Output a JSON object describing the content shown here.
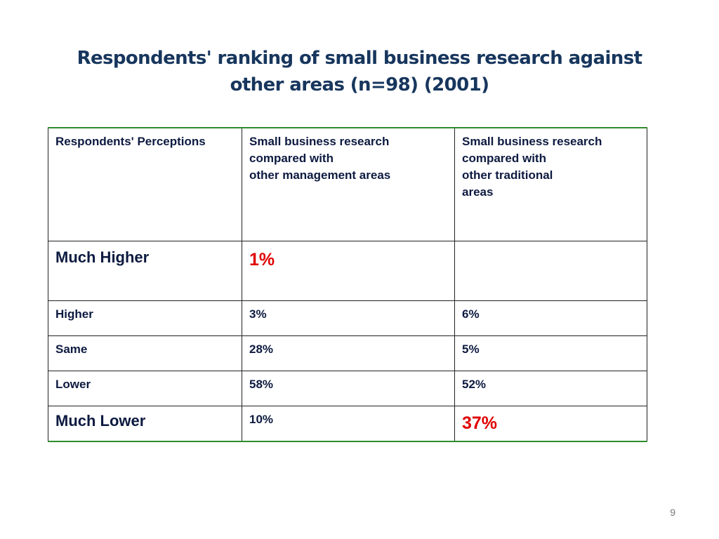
{
  "slide": {
    "title_line1": "Respondents' ranking of small business research against",
    "title_line2": "other areas (n=98) (2001)",
    "page_number": "9"
  },
  "table": {
    "headers": [
      "Respondents' Perceptions",
      "Small business research\ncompared with\nother management areas",
      "Small business research\ncompared with\nother traditional\nareas"
    ],
    "rows": [
      {
        "label": "Much Higher",
        "management": "1%",
        "traditional": ""
      },
      {
        "label": "Higher",
        "management": "3%",
        "traditional": "6%"
      },
      {
        "label": "Same",
        "management": "28%",
        "traditional": "5%"
      },
      {
        "label": "Lower",
        "management": "58%",
        "traditional": "52%"
      },
      {
        "label": "Much Lower",
        "management": "10%",
        "traditional": "37%"
      }
    ]
  },
  "colors": {
    "title": "#17365d",
    "table_text": "#0d1a40",
    "highlight": "#e00000",
    "table_rule": "#2e8b2e"
  }
}
